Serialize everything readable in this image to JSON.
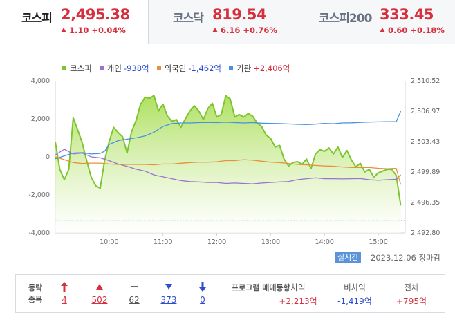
{
  "tabs": [
    {
      "name": "코스피",
      "value": "2,495.38",
      "change": "1.10",
      "change_pct": "+0.04%",
      "active": true
    },
    {
      "name": "코스닥",
      "value": "819.54",
      "change": "6.16",
      "change_pct": "+0.76%",
      "active": false
    },
    {
      "name": "코스피200",
      "value": "333.45",
      "change": "0.60",
      "change_pct": "+0.18%",
      "active": false
    }
  ],
  "legend": [
    {
      "name": "코스피",
      "value": "",
      "color": "#7cc52d"
    },
    {
      "name": "개인",
      "value": "-938억",
      "color": "#9b72cf"
    },
    {
      "name": "외국인",
      "value": "-1,462억",
      "color": "#e8913a"
    },
    {
      "name": "기관",
      "value": "+2,406억",
      "color": "#4a90e2"
    }
  ],
  "chart_data": {
    "type": "line",
    "x_labels": [
      "10:00",
      "11:00",
      "12:00",
      "13:00",
      "14:00",
      "15:00"
    ],
    "x_range": [
      "09:00",
      "15:30"
    ],
    "y_left": {
      "ticks": [
        "4,000",
        "2,000",
        "0",
        "-2,000",
        "-4,000"
      ],
      "range": [
        -4000,
        4000
      ],
      "unit": "억"
    },
    "y_right": {
      "ticks": [
        "2,510.52",
        "2,506.97",
        "2,503.43",
        "2,499.89",
        "2,496.35",
        "2,492.80"
      ],
      "range": [
        2492.8,
        2510.52
      ]
    },
    "series": [
      {
        "name": "코스피",
        "axis": "right",
        "color": "#7cc52d",
        "fill": true,
        "points": [
          [
            0,
            2503.4
          ],
          [
            5,
            2500.2
          ],
          [
            10,
            2499.0
          ],
          [
            15,
            2500.2
          ],
          [
            20,
            2506.2
          ],
          [
            25,
            2504.8
          ],
          [
            30,
            2503.3
          ],
          [
            35,
            2501.2
          ],
          [
            40,
            2499.3
          ],
          [
            45,
            2498.3
          ],
          [
            50,
            2498.0
          ],
          [
            55,
            2501.3
          ],
          [
            60,
            2503.4
          ],
          [
            65,
            2505.1
          ],
          [
            70,
            2504.5
          ],
          [
            75,
            2504.0
          ],
          [
            80,
            2502.1
          ],
          [
            85,
            2504.6
          ],
          [
            90,
            2505.9
          ],
          [
            95,
            2507.8
          ],
          [
            100,
            2508.6
          ],
          [
            105,
            2508.5
          ],
          [
            110,
            2508.8
          ],
          [
            115,
            2507.0
          ],
          [
            120,
            2507.8
          ],
          [
            125,
            2506.4
          ],
          [
            130,
            2505.8
          ],
          [
            135,
            2506.0
          ],
          [
            140,
            2505.1
          ],
          [
            145,
            2506.1
          ],
          [
            150,
            2507.0
          ],
          [
            155,
            2507.6
          ],
          [
            160,
            2507.0
          ],
          [
            165,
            2506.0
          ],
          [
            170,
            2507.3
          ],
          [
            175,
            2507.9
          ],
          [
            180,
            2506.3
          ],
          [
            185,
            2506.6
          ],
          [
            190,
            2508.8
          ],
          [
            195,
            2508.4
          ],
          [
            200,
            2506.3
          ],
          [
            205,
            2506.6
          ],
          [
            210,
            2506.3
          ],
          [
            215,
            2506.7
          ],
          [
            220,
            2506.4
          ],
          [
            225,
            2505.6
          ],
          [
            230,
            2505.2
          ],
          [
            235,
            2504.2
          ],
          [
            240,
            2503.8
          ],
          [
            245,
            2502.8
          ],
          [
            250,
            2503.0
          ],
          [
            255,
            2501.4
          ],
          [
            260,
            2500.6
          ],
          [
            265,
            2501.0
          ],
          [
            270,
            2501.1
          ],
          [
            275,
            2500.8
          ],
          [
            280,
            2501.4
          ],
          [
            285,
            2500.3
          ],
          [
            290,
            2502.0
          ],
          [
            295,
            2502.5
          ],
          [
            300,
            2502.3
          ],
          [
            305,
            2502.7
          ],
          [
            310,
            2502.0
          ],
          [
            315,
            2502.8
          ],
          [
            320,
            2501.6
          ],
          [
            325,
            2502.4
          ],
          [
            330,
            2501.3
          ],
          [
            335,
            2500.5
          ],
          [
            340,
            2500.9
          ],
          [
            345,
            2499.9
          ],
          [
            350,
            2500.2
          ],
          [
            355,
            2499.3
          ],
          [
            360,
            2499.8
          ],
          [
            365,
            2500.0
          ],
          [
            370,
            2500.2
          ],
          [
            375,
            2500.2
          ],
          [
            380,
            2499.5
          ],
          [
            385,
            2496.0
          ]
        ]
      },
      {
        "name": "기관",
        "axis": "left",
        "color": "#4a90e2",
        "points": [
          [
            0,
            -100
          ],
          [
            10,
            50
          ],
          [
            20,
            200
          ],
          [
            30,
            220
          ],
          [
            40,
            150
          ],
          [
            50,
            180
          ],
          [
            55,
            300
          ],
          [
            60,
            650
          ],
          [
            70,
            850
          ],
          [
            80,
            930
          ],
          [
            90,
            1000
          ],
          [
            100,
            1100
          ],
          [
            110,
            1300
          ],
          [
            120,
            1600
          ],
          [
            130,
            1750
          ],
          [
            140,
            1780
          ],
          [
            150,
            1780
          ],
          [
            160,
            1800
          ],
          [
            170,
            1810
          ],
          [
            180,
            1800
          ],
          [
            190,
            1820
          ],
          [
            200,
            1800
          ],
          [
            210,
            1780
          ],
          [
            220,
            1800
          ],
          [
            230,
            1770
          ],
          [
            240,
            1760
          ],
          [
            250,
            1750
          ],
          [
            260,
            1730
          ],
          [
            270,
            1710
          ],
          [
            280,
            1700
          ],
          [
            290,
            1720
          ],
          [
            300,
            1760
          ],
          [
            310,
            1740
          ],
          [
            320,
            1780
          ],
          [
            330,
            1790
          ],
          [
            340,
            1810
          ],
          [
            350,
            1830
          ],
          [
            360,
            1840
          ],
          [
            370,
            1850
          ],
          [
            380,
            1850
          ],
          [
            385,
            2400
          ]
        ]
      },
      {
        "name": "개인",
        "axis": "left",
        "color": "#9b72cf",
        "points": [
          [
            0,
            100
          ],
          [
            10,
            400
          ],
          [
            20,
            150
          ],
          [
            30,
            200
          ],
          [
            40,
            0
          ],
          [
            50,
            -50
          ],
          [
            60,
            -200
          ],
          [
            70,
            -380
          ],
          [
            80,
            -500
          ],
          [
            90,
            -650
          ],
          [
            100,
            -750
          ],
          [
            110,
            -950
          ],
          [
            120,
            -1050
          ],
          [
            130,
            -1150
          ],
          [
            140,
            -1250
          ],
          [
            150,
            -1300
          ],
          [
            160,
            -1320
          ],
          [
            170,
            -1350
          ],
          [
            180,
            -1350
          ],
          [
            190,
            -1400
          ],
          [
            200,
            -1380
          ],
          [
            210,
            -1400
          ],
          [
            220,
            -1420
          ],
          [
            230,
            -1380
          ],
          [
            240,
            -1350
          ],
          [
            250,
            -1320
          ],
          [
            260,
            -1300
          ],
          [
            270,
            -1200
          ],
          [
            280,
            -1150
          ],
          [
            290,
            -1100
          ],
          [
            300,
            -1150
          ],
          [
            310,
            -1150
          ],
          [
            320,
            -1160
          ],
          [
            330,
            -1150
          ],
          [
            340,
            -1140
          ],
          [
            350,
            -1200
          ],
          [
            360,
            -1230
          ],
          [
            370,
            -1200
          ],
          [
            380,
            -1180
          ],
          [
            385,
            -938
          ]
        ]
      },
      {
        "name": "외국인",
        "axis": "left",
        "color": "#e8913a",
        "points": [
          [
            0,
            0
          ],
          [
            10,
            -150
          ],
          [
            20,
            -300
          ],
          [
            30,
            -350
          ],
          [
            40,
            -330
          ],
          [
            50,
            -330
          ],
          [
            60,
            -380
          ],
          [
            70,
            -400
          ],
          [
            80,
            -400
          ],
          [
            90,
            -400
          ],
          [
            100,
            -400
          ],
          [
            110,
            -420
          ],
          [
            120,
            -380
          ],
          [
            130,
            -380
          ],
          [
            140,
            -340
          ],
          [
            150,
            -300
          ],
          [
            160,
            -280
          ],
          [
            170,
            -280
          ],
          [
            180,
            -260
          ],
          [
            190,
            -200
          ],
          [
            200,
            -200
          ],
          [
            210,
            -150
          ],
          [
            220,
            -180
          ],
          [
            230,
            -230
          ],
          [
            240,
            -280
          ],
          [
            250,
            -300
          ],
          [
            260,
            -350
          ],
          [
            270,
            -400
          ],
          [
            280,
            -420
          ],
          [
            290,
            -450
          ],
          [
            300,
            -480
          ],
          [
            310,
            -490
          ],
          [
            320,
            -530
          ],
          [
            330,
            -560
          ],
          [
            340,
            -560
          ],
          [
            350,
            -560
          ],
          [
            360,
            -600
          ],
          [
            370,
            -620
          ],
          [
            380,
            -600
          ],
          [
            385,
            -1462
          ]
        ]
      }
    ]
  },
  "realtime_label": "실시간",
  "datetime": "2023.12.06 장마감",
  "rise_fall": {
    "title": "등락 종목",
    "items": [
      {
        "name": "upper-limit",
        "count": "4",
        "color": "red"
      },
      {
        "name": "rise",
        "count": "502",
        "color": "red"
      },
      {
        "name": "unchanged",
        "count": "62",
        "color": "gray"
      },
      {
        "name": "fall",
        "count": "373",
        "color": "blue"
      },
      {
        "name": "lower-limit",
        "count": "0",
        "color": "blue"
      }
    ]
  },
  "program": {
    "title": "프로그램 매매동향",
    "columns": [
      {
        "label": "차익",
        "value": "+2,213억",
        "color": "red"
      },
      {
        "label": "비차익",
        "value": "-1,419억",
        "color": "blue"
      },
      {
        "label": "전체",
        "value": "+795억",
        "color": "red"
      }
    ]
  }
}
